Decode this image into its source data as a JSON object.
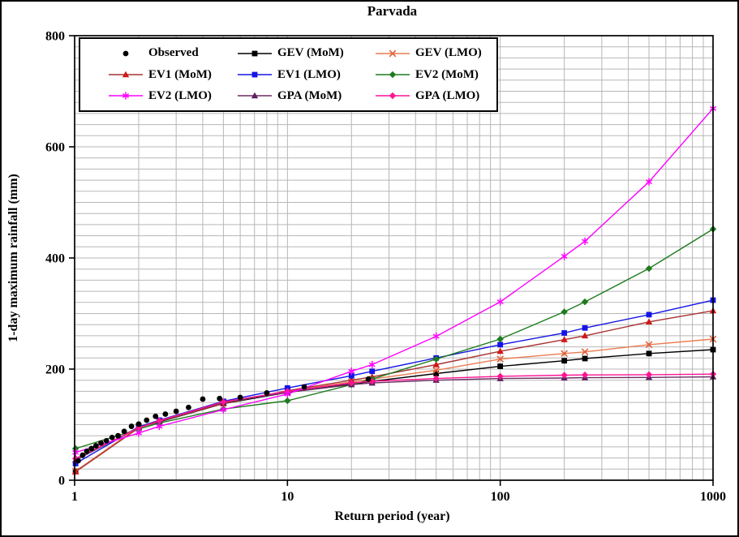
{
  "chart_data": {
    "type": "line",
    "title": "Parvada",
    "xlabel": "Return period (year)",
    "ylabel": "1-day maximum rainfall (mm)",
    "x_scale": "log",
    "xlim": [
      1,
      1000
    ],
    "ylim": [
      0,
      800
    ],
    "x_ticks": [
      "1",
      "10",
      "100",
      "1000"
    ],
    "y_ticks": [
      "0",
      "200",
      "400",
      "600",
      "800"
    ],
    "grid": {
      "color": "#b7b7b7",
      "y_minor_step": 20,
      "x_minor": "log-decades"
    },
    "fit_x": [
      1.01,
      2,
      2.5,
      5,
      10,
      20,
      25,
      50,
      100,
      200,
      250,
      500,
      1000
    ],
    "series": [
      {
        "name": "Observed",
        "kind": "scatter",
        "marker": "circle",
        "color": "#000000",
        "x": [
          1.04,
          1.09,
          1.14,
          1.2,
          1.26,
          1.33,
          1.41,
          1.5,
          1.6,
          1.71,
          1.85,
          2.0,
          2.18,
          2.4,
          2.67,
          3.0,
          3.43,
          4.0,
          4.8,
          6.0,
          8.0,
          12.0,
          24.0
        ],
        "values": [
          35,
          45,
          52,
          57,
          62,
          67,
          71,
          77,
          80,
          88,
          97,
          101,
          108,
          115,
          119,
          124,
          131,
          146,
          147,
          149,
          157,
          168,
          182
        ]
      },
      {
        "name": "GEV (MoM)",
        "kind": "line",
        "marker": "square",
        "color": "#000000",
        "marker_color": "#000000",
        "values": [
          16,
          95,
          105,
          138,
          158,
          173,
          178,
          192,
          205,
          215,
          219,
          228,
          235
        ]
      },
      {
        "name": "GEV (LMO)",
        "kind": "line",
        "marker": "x",
        "color": "#ec7b52",
        "marker_color": "#e06038",
        "values": [
          16,
          96,
          107,
          140,
          160,
          177,
          182,
          198,
          218,
          228,
          231,
          244,
          254
        ]
      },
      {
        "name": "EV1 (MoM)",
        "kind": "line",
        "marker": "triangle",
        "color": "#a83232",
        "marker_color": "#d01818",
        "values": [
          15,
          94,
          106,
          138,
          161,
          180,
          186,
          208,
          232,
          253,
          260,
          285,
          305
        ]
      },
      {
        "name": "EV1 (LMO)",
        "kind": "line",
        "marker": "square",
        "color": "#1414e6",
        "marker_color": "#1414e6",
        "values": [
          30,
          96,
          108,
          142,
          166,
          188,
          196,
          220,
          244,
          265,
          274,
          298,
          324
        ]
      },
      {
        "name": "EV2 (MoM)",
        "kind": "line",
        "marker": "diamond",
        "color": "#1e7b1e",
        "marker_color": "#1e7b1e",
        "values": [
          57,
          92,
          103,
          128,
          143,
          172,
          182,
          218,
          254,
          303,
          321,
          381,
          452
        ]
      },
      {
        "name": "EV2 (LMO)",
        "kind": "line",
        "marker": "star",
        "color": "#ff00ff",
        "marker_color": "#ff00ff",
        "values": [
          50,
          85,
          97,
          127,
          155,
          196,
          208,
          259,
          321,
          403,
          430,
          537,
          669
        ]
      },
      {
        "name": "GPA (MoM)",
        "kind": "line",
        "marker": "triangle",
        "color": "#6b2d62",
        "marker_color": "#5c2060",
        "values": [
          36,
          95,
          107,
          140,
          158,
          172,
          175,
          180,
          183,
          184,
          184.5,
          185,
          186
        ]
      },
      {
        "name": "GPA (LMO)",
        "kind": "line",
        "marker": "diamond",
        "color": "#ff1493",
        "marker_color": "#ff1493",
        "values": [
          39,
          94,
          107,
          141,
          160,
          175,
          178,
          183,
          187,
          189,
          189.5,
          190,
          191
        ]
      }
    ],
    "legend_order": [
      "Observed",
      "GEV (MoM)",
      "GEV (LMO)",
      "EV1 (MoM)",
      "EV1 (LMO)",
      "EV2 (MoM)",
      "EV2 (LMO)",
      "GPA (MoM)",
      "GPA (LMO)"
    ],
    "draw_order": [
      "GEV (MoM)",
      "GEV (LMO)",
      "EV1 (MoM)",
      "EV1 (LMO)",
      "EV2 (MoM)",
      "GPA (MoM)",
      "GPA (LMO)",
      "EV2 (LMO)",
      "Observed"
    ]
  }
}
